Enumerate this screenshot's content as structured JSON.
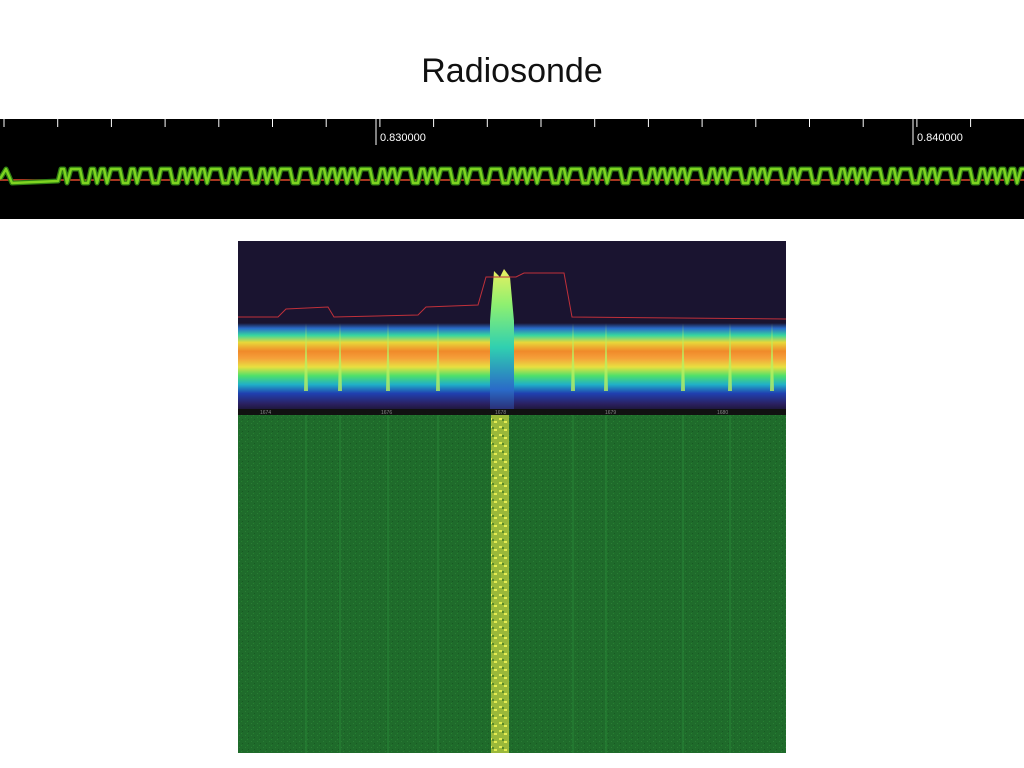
{
  "slide": {
    "title": "Radiosonde"
  },
  "waveform": {
    "time_labels": [
      "0.830000",
      "0.840000"
    ],
    "trace_color": "#7ed321",
    "trace_outline_color": "#2e7d12",
    "baseline_color": "#e0452a",
    "background": "#000000"
  },
  "spectrum": {
    "freq_labels": [
      "1674",
      "1676",
      "1678",
      "1679",
      "1680"
    ],
    "waterfall_color": "#1f6f2c",
    "signal_color": "#d4e84a",
    "background": "#1a1430"
  }
}
